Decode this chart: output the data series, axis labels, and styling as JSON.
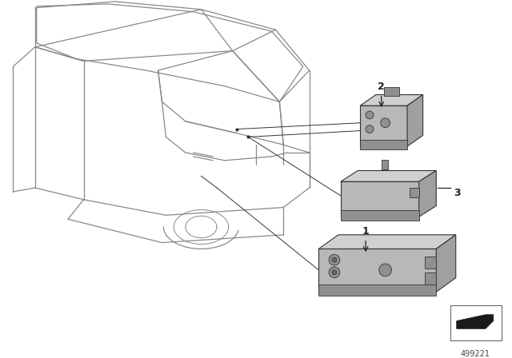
{
  "bg_color": "#ffffff",
  "fig_width": 6.4,
  "fig_height": 4.48,
  "dpi": 100,
  "part_number": "499221",
  "lc": "#333333",
  "car_lc": "#888888",
  "part_fill": "#b8b8b8",
  "part_top": "#d0d0d0",
  "part_side": "#a0a0a0",
  "part_dark": "#909090"
}
